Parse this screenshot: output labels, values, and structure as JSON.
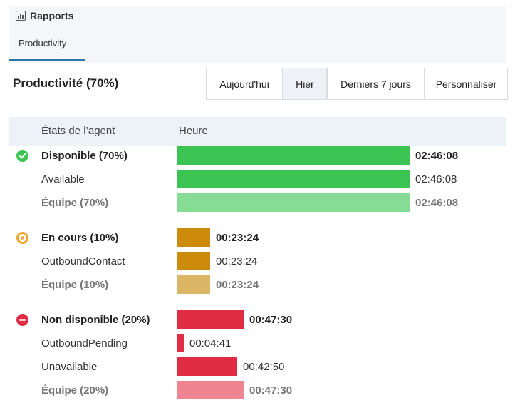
{
  "app": {
    "title": "Rapports"
  },
  "tabs": [
    {
      "label": "Productivity"
    }
  ],
  "section": {
    "title": "Productivité (70%)"
  },
  "period_buttons": [
    {
      "label": "Aujourd'hui",
      "active": false
    },
    {
      "label": "Hier",
      "active": true
    },
    {
      "label": "Derniers 7 jours",
      "active": false
    },
    {
      "label": "Personnaliser",
      "active": false
    }
  ],
  "table": {
    "col_state": "États de l’agent",
    "col_time": "Heure"
  },
  "groups": [
    {
      "icon": "check-circle-icon",
      "color": "#3bc451",
      "summary": {
        "label": "Disponible (70%)",
        "time": "02:46:08",
        "fraction": 1.0
      },
      "rows": [
        {
          "label": "Available",
          "time": "02:46:08",
          "fraction": 1.0
        }
      ],
      "team": {
        "label": "Équipe (70%)",
        "time": "02:46:08",
        "fraction": 1.0,
        "color": "#86dc94"
      }
    },
    {
      "icon": "dot-circle-icon",
      "color": "#cc8b0a",
      "summary": {
        "label": "En cours (10%)",
        "time": "00:23:24",
        "fraction": 0.141
      },
      "rows": [
        {
          "label": "OutboundContact",
          "time": "00:23:24",
          "fraction": 0.141
        }
      ],
      "team": {
        "label": "Équipe (10%)",
        "time": "00:23:24",
        "fraction": 0.141,
        "color": "#dcb667"
      }
    },
    {
      "icon": "minus-circle-icon",
      "color": "#e12d44",
      "summary": {
        "label": "Non disponible (20%)",
        "time": "00:47:30",
        "fraction": 0.286
      },
      "rows": [
        {
          "label": "OutboundPending",
          "time": "00:04:41",
          "fraction": 0.028
        },
        {
          "label": "Unavailable",
          "time": "00:42:50",
          "fraction": 0.258
        }
      ],
      "team": {
        "label": "Équipe (20%)",
        "time": "00:47:30",
        "fraction": 0.286,
        "color": "#ef8590"
      }
    }
  ]
}
